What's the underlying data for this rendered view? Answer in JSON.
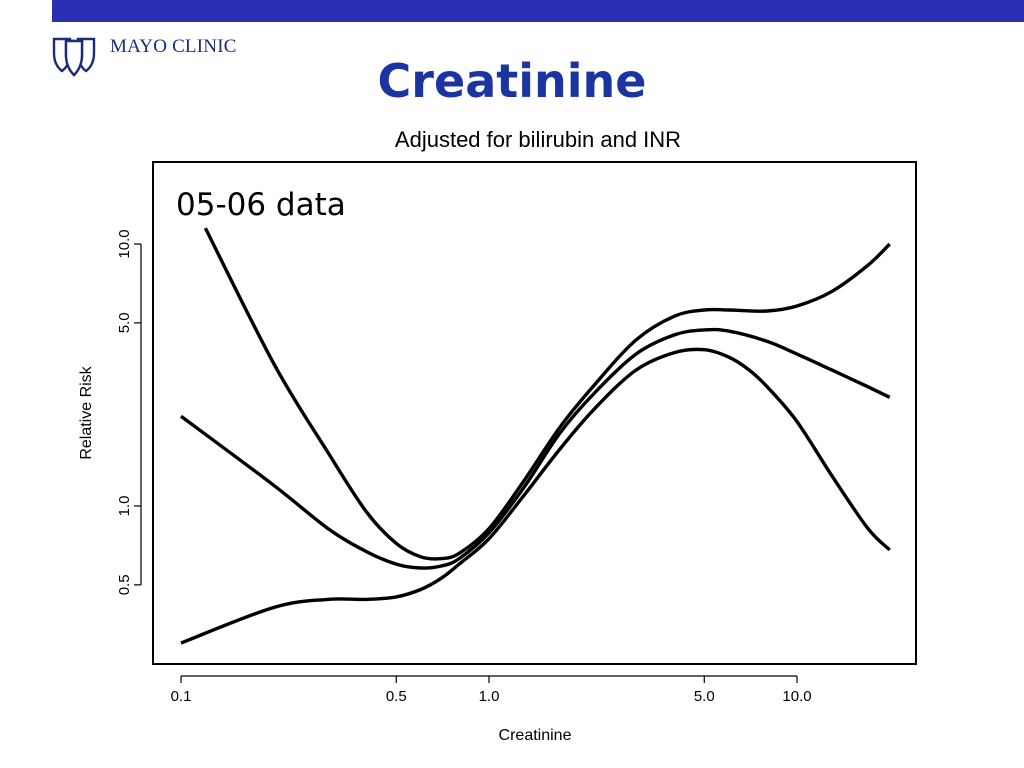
{
  "header": {
    "brand": "MAYO CLINIC",
    "logo_icon": "mayo-shields-logo",
    "bar_color": "#2a2fb4",
    "title": "Creatinine",
    "title_color": "#1a35a0"
  },
  "chart_data": {
    "type": "line",
    "title": "Adjusted for bilirubin and INR",
    "annotation": "05-06 data",
    "xlabel": "Creatinine",
    "ylabel": "Relative Risk",
    "x_scale": "log",
    "y_scale": "log",
    "xlim": [
      0.1,
      20
    ],
    "ylim": [
      0.25,
      20
    ],
    "x_ticks": [
      0.1,
      0.5,
      1.0,
      5.0,
      10.0
    ],
    "x_tick_labels": [
      "0.1",
      "0.5",
      "1.0",
      "5.0",
      "10.0"
    ],
    "y_ticks": [
      0.5,
      1.0,
      5.0,
      10.0
    ],
    "y_tick_labels": [
      "0.5",
      "1.0",
      "5.0",
      "10.0"
    ],
    "grid": false,
    "series": [
      {
        "role": "upper",
        "x": [
          0.12,
          0.2,
          0.3,
          0.4,
          0.5,
          0.6,
          0.7,
          0.8,
          1.0,
          1.3,
          1.7,
          2.2,
          3.0,
          4.0,
          5.0,
          6.0,
          8.0,
          10.0,
          13.0,
          17.0,
          20.0
        ],
        "y": [
          11.5,
          3.5,
          1.6,
          0.95,
          0.72,
          0.64,
          0.63,
          0.66,
          0.82,
          1.25,
          2.0,
          2.9,
          4.3,
          5.3,
          5.6,
          5.6,
          5.55,
          5.8,
          6.6,
          8.3,
          10.0
        ]
      },
      {
        "role": "estimate",
        "x": [
          0.1,
          0.2,
          0.3,
          0.4,
          0.5,
          0.6,
          0.7,
          0.8,
          1.0,
          1.3,
          1.7,
          2.2,
          3.0,
          4.0,
          5.0,
          6.0,
          8.0,
          10.0,
          13.0,
          17.0,
          20.0
        ],
        "y": [
          2.2,
          1.2,
          0.82,
          0.67,
          0.6,
          0.58,
          0.59,
          0.63,
          0.79,
          1.18,
          1.9,
          2.7,
          3.8,
          4.5,
          4.7,
          4.65,
          4.25,
          3.8,
          3.3,
          2.85,
          2.6
        ]
      },
      {
        "role": "lower",
        "x": [
          0.1,
          0.2,
          0.3,
          0.4,
          0.5,
          0.6,
          0.7,
          0.8,
          1.0,
          1.3,
          1.7,
          2.2,
          3.0,
          4.0,
          5.0,
          6.0,
          7.0,
          8.0,
          10.0,
          13.0,
          17.0,
          20.0
        ],
        "y": [
          0.3,
          0.41,
          0.44,
          0.44,
          0.45,
          0.48,
          0.53,
          0.6,
          0.75,
          1.1,
          1.65,
          2.35,
          3.3,
          3.85,
          3.95,
          3.7,
          3.3,
          2.85,
          2.1,
          1.3,
          0.82,
          0.68
        ]
      }
    ]
  }
}
